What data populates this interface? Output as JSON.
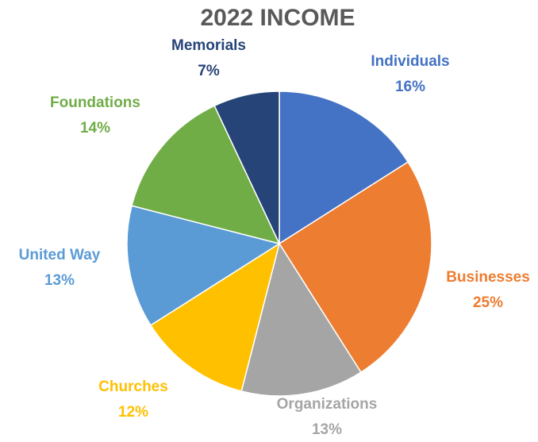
{
  "chart_data": {
    "type": "pie",
    "title": "2022 INCOME",
    "categories": [
      "Individuals",
      "Businesses",
      "Organizations",
      "Churches",
      "United Way",
      "Foundations",
      "Memorials"
    ],
    "values": [
      16,
      25,
      13,
      12,
      13,
      14,
      7
    ],
    "value_labels": [
      "16%",
      "25%",
      "13%",
      "12%",
      "13%",
      "14%",
      "7%"
    ],
    "colors": [
      "#4472c4",
      "#ed7d31",
      "#a5a5a5",
      "#ffc000",
      "#5b9bd5",
      "#70ad47",
      "#264478"
    ]
  }
}
